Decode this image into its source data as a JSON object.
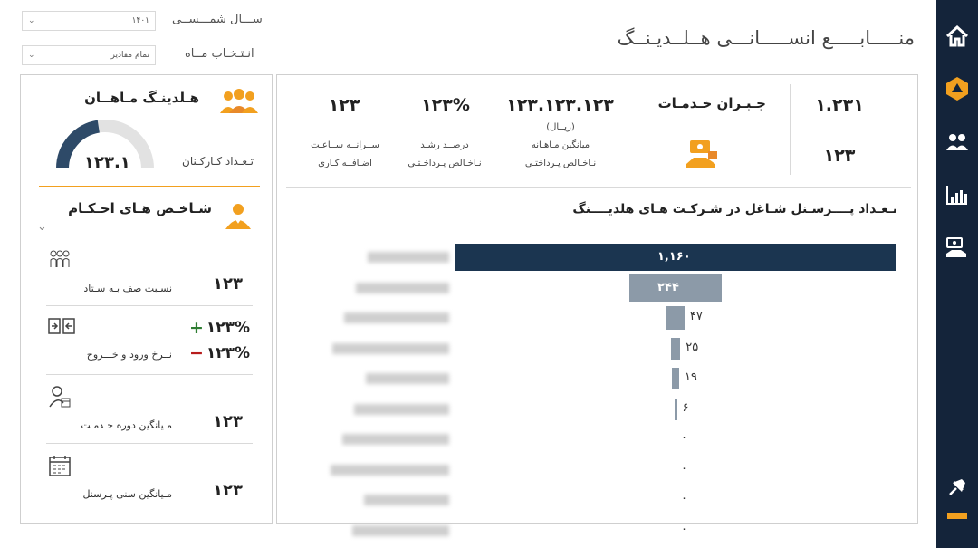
{
  "page": {
    "title": "منـــــابـــــع انســـــانـــی هــلــدیـنــگ"
  },
  "filters": {
    "year_label": "ســـال شمـــســی",
    "year_value": "۱۴۰۱",
    "month_label": "انـتـخـاب مــاه",
    "month_value": "تمام مقادیر"
  },
  "kpis": {
    "count_top": "۱.۲۳۱",
    "count_bottom": "۱۲۳",
    "compensation_title": "جـبـران خـدمـات",
    "avg_salary": "۱۲۳.۱۲۳.۱۲۳",
    "avg_salary_unit": "(ریــال)",
    "avg_salary_label_1": "میانگین مـاهـانه",
    "avg_salary_label_2": "نـاخـالص پـرداختـی",
    "growth": "۱۲۳%",
    "growth_label_1": "درصــد رشـد",
    "growth_label_2": "نـاخـالص پـرداخـتـی",
    "overtime": "۱۲۳",
    "overtime_label_1": "ســرانــه ســاعـت",
    "overtime_label_2": "اضـافــه کـاری"
  },
  "holding": {
    "title": "هـلدینـگ مـاهــان",
    "employees_label": "تـعـداد کـارکـنان",
    "employees_value": "۱۲۳.۱",
    "gauge_fill": 0.45,
    "indicators_title": "شـاخـص هـای احـکـام"
  },
  "metrics": [
    {
      "label": "نسـبت صف بـه سـتاد",
      "value": "۱۲۳"
    },
    {
      "label": "نــرخ ورود و خـــروج",
      "plus": "۱۲۳%",
      "minus": "۱۲۳%"
    },
    {
      "label": "مـیانگین دوره خـدمـت",
      "value": "۱۲۳"
    },
    {
      "label": "مـیانگین سنی پـرسنل",
      "value": "۱۲۳"
    }
  ],
  "chart_data": {
    "type": "bar",
    "orientation": "horizontal",
    "title": "تـعـداد پــــرسـنل شـاغل در شـرکـت هـای هلدیــــنگ",
    "categories": [
      "",
      "",
      "",
      "",
      "",
      "",
      "",
      "",
      "",
      ""
    ],
    "values": [
      1160,
      244,
      47,
      25,
      19,
      6,
      0,
      0,
      0,
      0
    ],
    "value_labels": [
      "۱,۱۶۰",
      "۲۴۴",
      "۴۷",
      "۲۵",
      "۱۹",
      "۶",
      "۰",
      "۰",
      "۰",
      "۰"
    ],
    "colors": {
      "top": "#1b3550",
      "other": "#8c9aa8"
    }
  },
  "nav": [
    "home-icon",
    "logo-icon",
    "people-icon",
    "chart-icon",
    "compensation-icon",
    "pin-icon"
  ]
}
